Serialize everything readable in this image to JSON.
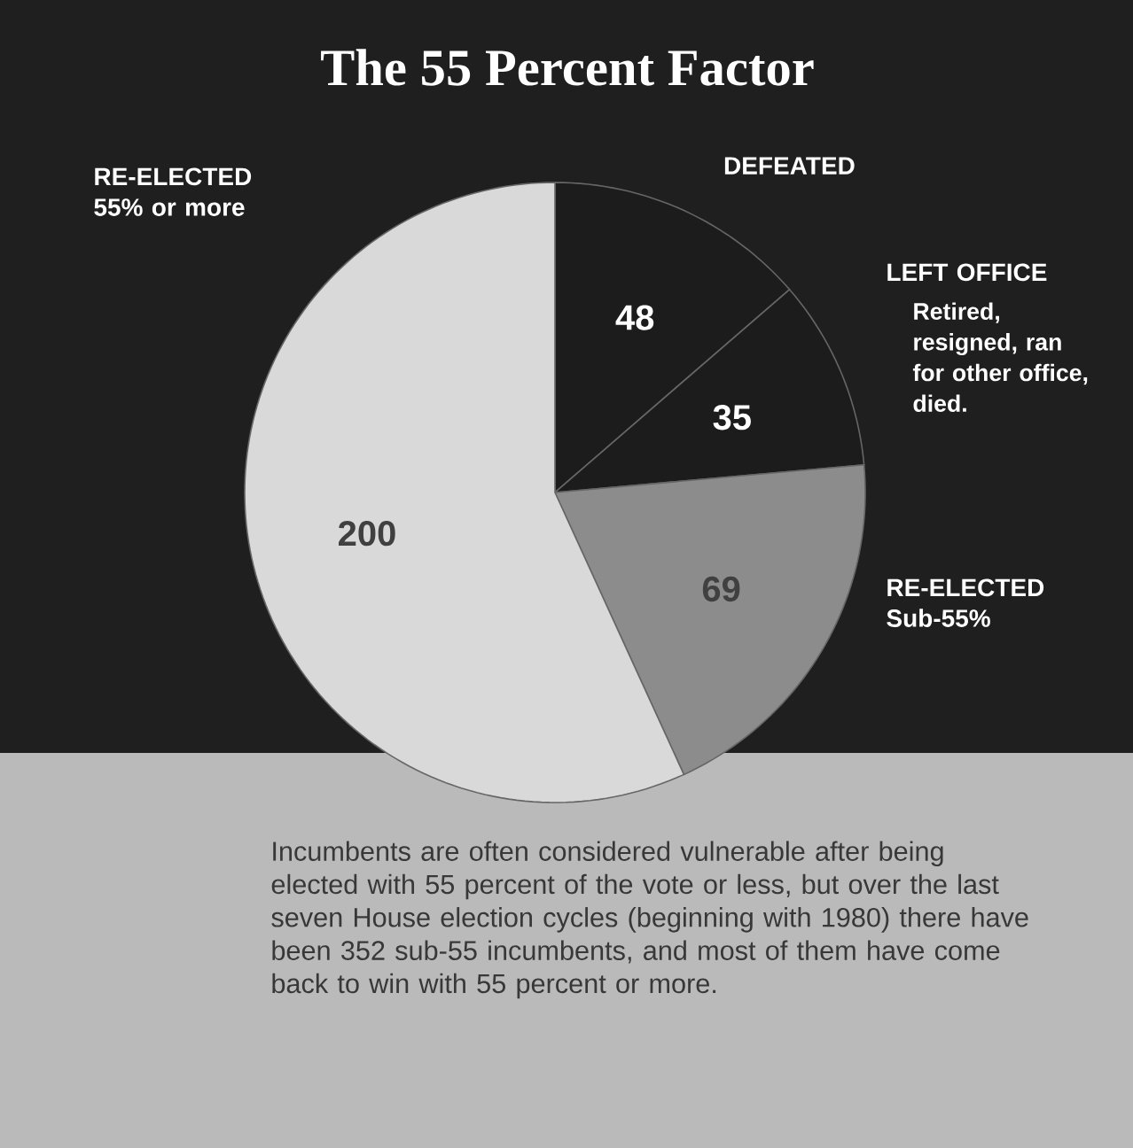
{
  "chart_data": {
    "type": "pie",
    "title": "The 55 Percent Factor",
    "categories": [
      "DEFEATED",
      "LEFT OFFICE",
      "RE-ELECTED Sub-55%",
      "RE-ELECTED 55% or more"
    ],
    "values": [
      48,
      35,
      69,
      200
    ],
    "colors": [
      "#1c1c1c",
      "#1c1c1c",
      "#8c8c8c",
      "#d9d9d9"
    ],
    "data_labels": true,
    "annotations": [
      "Retired, resigned, ran for other office, died.",
      "Incumbents are often considered vulnerable after being elected with 55 percent of the vote or less, but over the last seven House election cycles (beginning with 1980) there have been 352 sub-55 incumbents, and most of them have come back to win with 55 percent or more."
    ]
  }
}
